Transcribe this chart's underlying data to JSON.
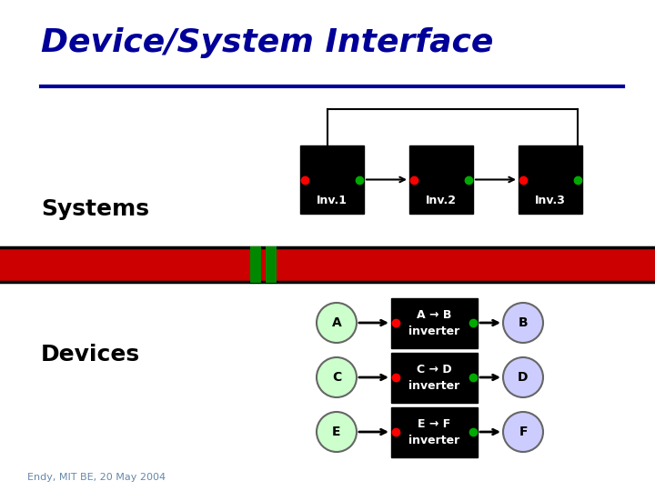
{
  "title": "Device/System Interface",
  "title_color": "#000099",
  "footer": "Endy, MIT BE, 20 May 2004",
  "footer_color": "#6688aa",
  "bg_color": "#ffffff",
  "systems_label": "Systems",
  "devices_label": "Devices",
  "label_color": "#000000",
  "separator_line_color": "#000099",
  "red_bar_color": "#cc0000",
  "green_gap_color": "#008800",
  "inv_labels": [
    "Inv.1",
    "Inv.2",
    "Inv.3"
  ],
  "device_rows": [
    {
      "in_label": "A",
      "line1": "A → B",
      "line2": "inverter",
      "out_label": "B"
    },
    {
      "in_label": "C",
      "line1": "C → D",
      "line2": "inverter",
      "out_label": "D"
    },
    {
      "in_label": "E",
      "line1": "E → F",
      "line2": "inverter",
      "out_label": "F"
    }
  ]
}
